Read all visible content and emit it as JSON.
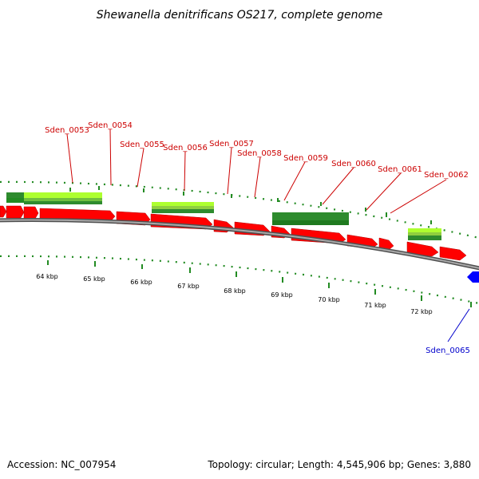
{
  "title": "Shewanella denitrificans OS217, complete genome",
  "footer": {
    "accession": "Accession: NC_007954",
    "summary": "Topology: circular; Length: 4,545,906 bp; Genes: 3,880"
  },
  "colors": {
    "gene_red": "#ff0000",
    "gene_red_dark": "#b00000",
    "green_dark": "#2e8b2e",
    "green_light": "#adff2f",
    "backbone": "#808080",
    "tick_green": "#228b22",
    "label_red": "#cc0000",
    "label_blue": "#0000cc",
    "gene_blue": "#0000ff"
  },
  "scale_ticks": [
    "64 kbp",
    "65 kbp",
    "66 kbp",
    "67 kbp",
    "68 kbp",
    "69 kbp",
    "70 kbp",
    "71 kbp",
    "72 kbp"
  ],
  "forward_genes": [
    {
      "label": "Sden_0053"
    },
    {
      "label": "Sden_0054"
    },
    {
      "label": "Sden_0055"
    },
    {
      "label": "Sden_0056"
    },
    {
      "label": "Sden_0057"
    },
    {
      "label": "Sden_0058"
    },
    {
      "label": "Sden_0059"
    },
    {
      "label": "Sden_0060"
    },
    {
      "label": "Sden_0061"
    },
    {
      "label": "Sden_0062"
    }
  ],
  "reverse_genes": [
    {
      "label": "Sden_0065"
    }
  ]
}
